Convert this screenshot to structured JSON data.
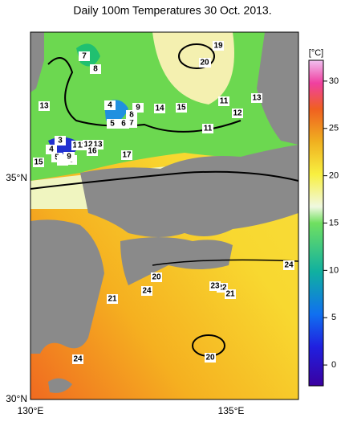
{
  "title": "Daily 100m Temperatures 30 Oct. 2013.",
  "lat_labels": [
    "35°N",
    "30°N"
  ],
  "lon_labels": [
    "130°E",
    "135°E"
  ],
  "colorbar": {
    "unit": "[°C]",
    "lim": [
      -2.2,
      32.2
    ],
    "ticks": [
      0,
      5,
      10,
      15,
      20,
      25,
      30
    ]
  },
  "contour_labels": [
    7,
    8,
    13,
    4,
    5,
    6,
    7,
    8,
    9,
    14,
    15,
    11,
    12,
    13,
    11,
    19,
    20,
    3,
    4,
    5,
    6,
    7,
    8,
    9,
    10,
    11,
    12,
    13,
    16,
    15,
    17,
    20,
    24,
    21,
    23,
    22,
    21,
    24,
    20,
    24,
    20,
    23
  ]
}
